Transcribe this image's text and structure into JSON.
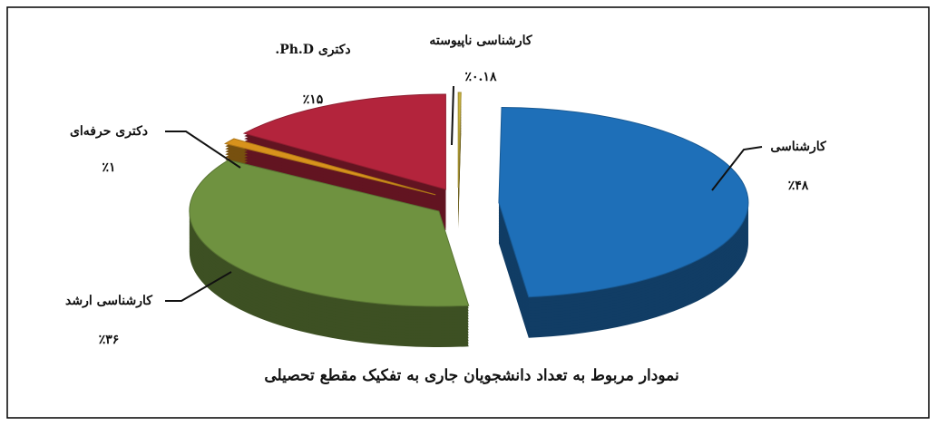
{
  "chart_data": {
    "type": "pie",
    "title": "نمودار مربوط به تعداد دانشجویان جاری به تفکیک مقطع تحصیلی",
    "categories": [
      "کارشناسی ناپیوسته",
      "کارشناسی",
      "کارشناسی ارشد",
      "دکتری حرفه‌ای",
      "دکتری Ph.D."
    ],
    "values": [
      0.18,
      48,
      36,
      1,
      15
    ],
    "value_labels": [
      "٪۰.۱۸",
      "٪۴۸",
      "٪۳۶",
      "٪۱",
      "٪۱۵"
    ],
    "colors": [
      "#c9b23c",
      "#1e6fb8",
      "#6f9240",
      "#d8921c",
      "#b3243c"
    ]
  }
}
